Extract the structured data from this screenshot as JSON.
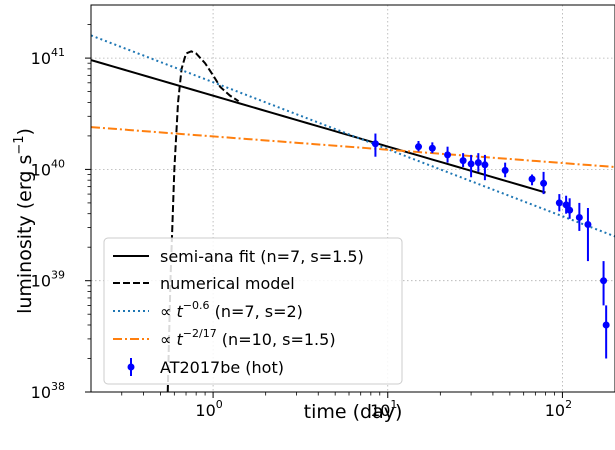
{
  "chart_data": {
    "type": "line",
    "xlabel": "time (day)",
    "ylabel": "luminosity (erg s",
    "ylabel_sup": "−1",
    "ylabel_close": ")",
    "x_scale": "log",
    "y_scale": "log",
    "xlim": [
      0.2,
      200
    ],
    "ylim": [
      1e+38,
      3e+41
    ],
    "grid": true,
    "legend_position": "lower-left",
    "x_ticks": [
      {
        "value": 1,
        "base": "10",
        "exp": "0"
      },
      {
        "value": 10,
        "base": "10",
        "exp": "1"
      },
      {
        "value": 100,
        "base": "10",
        "exp": "2"
      }
    ],
    "y_ticks": [
      {
        "value": 1e+38,
        "base": "10",
        "exp": "38"
      },
      {
        "value": 1e+39,
        "base": "10",
        "exp": "39"
      },
      {
        "value": 1e+40,
        "base": "10",
        "exp": "40"
      },
      {
        "value": 1e+41,
        "base": "10",
        "exp": "41"
      }
    ],
    "series": [
      {
        "name": "semi-ana fit (n=7, s=1.5)",
        "style": "solid",
        "color": "#000000",
        "x": [
          0.2,
          80
        ],
        "y": [
          9.6e+40,
          6.2e+39
        ]
      },
      {
        "name": "numerical model",
        "style": "dashed",
        "color": "#000000",
        "x": [
          0.55,
          0.57,
          0.6,
          0.63,
          0.66,
          0.7,
          0.75,
          0.8,
          0.9,
          1.0,
          1.1,
          1.25,
          1.4
        ],
        "y": [
          1e+38,
          1e+39,
          1e+40,
          4e+40,
          8e+40,
          1.1e+41,
          1.15e+41,
          1.1e+41,
          9e+40,
          7e+40,
          5.5e+40,
          4.6e+40,
          4.1e+40
        ]
      },
      {
        "name_prefix": "∝ t",
        "name_exp": "−0.6",
        "name_suffix": " (n=7, s=2)",
        "style": "dotted",
        "color": "#1f77b4",
        "x": [
          0.2,
          200
        ],
        "y": [
          1.6e+41,
          2.5e+39
        ]
      },
      {
        "name_prefix": "∝ t",
        "name_exp": "−2/17",
        "name_suffix": " (n=10, s=1.5)",
        "style": "dashdot",
        "color": "#ff7f0e",
        "x": [
          0.2,
          200
        ],
        "y": [
          2.4e+40,
          1.05e+40
        ]
      }
    ],
    "points": {
      "name": "AT2017be (hot)",
      "color": "#0000ff",
      "data": [
        {
          "x": 8.5,
          "y": 1.7e+40,
          "lo": 1.3e+40,
          "hi": 2.1e+40
        },
        {
          "x": 15,
          "y": 1.6e+40,
          "lo": 1.45e+40,
          "hi": 1.8e+40
        },
        {
          "x": 18,
          "y": 1.55e+40,
          "lo": 1.4e+40,
          "hi": 1.75e+40
        },
        {
          "x": 22,
          "y": 1.35e+40,
          "lo": 1.15e+40,
          "hi": 1.6e+40
        },
        {
          "x": 27,
          "y": 1.2e+40,
          "lo": 1.05e+40,
          "hi": 1.4e+40
        },
        {
          "x": 30,
          "y": 1.12e+40,
          "lo": 8.5e+39,
          "hi": 1.35e+40
        },
        {
          "x": 33,
          "y": 1.15e+40,
          "lo": 9.5e+39,
          "hi": 1.4e+40
        },
        {
          "x": 36,
          "y": 1.1e+40,
          "lo": 8e+39,
          "hi": 1.35e+40
        },
        {
          "x": 47,
          "y": 9.8e+39,
          "lo": 8.5e+39,
          "hi": 1.15e+40
        },
        {
          "x": 67,
          "y": 8.2e+39,
          "lo": 7.2e+39,
          "hi": 9e+39
        },
        {
          "x": 78,
          "y": 7.5e+39,
          "lo": 6e+39,
          "hi": 9.5e+39
        },
        {
          "x": 96,
          "y": 5e+39,
          "lo": 4.2e+39,
          "hi": 6e+39
        },
        {
          "x": 105,
          "y": 4.8e+39,
          "lo": 4e+39,
          "hi": 5.8e+39
        },
        {
          "x": 110,
          "y": 4.3e+39,
          "lo": 3.6e+39,
          "hi": 5.5e+39
        },
        {
          "x": 125,
          "y": 3.7e+39,
          "lo": 2.8e+39,
          "hi": 5e+39
        },
        {
          "x": 140,
          "y": 3.2e+39,
          "lo": 1.5e+39,
          "hi": 4.5e+39
        },
        {
          "x": 172,
          "y": 1e+39,
          "lo": 6e+38,
          "hi": 1.5e+39
        },
        {
          "x": 178,
          "y": 4e+38,
          "lo": 2e+38,
          "hi": 6e+38
        }
      ]
    }
  }
}
